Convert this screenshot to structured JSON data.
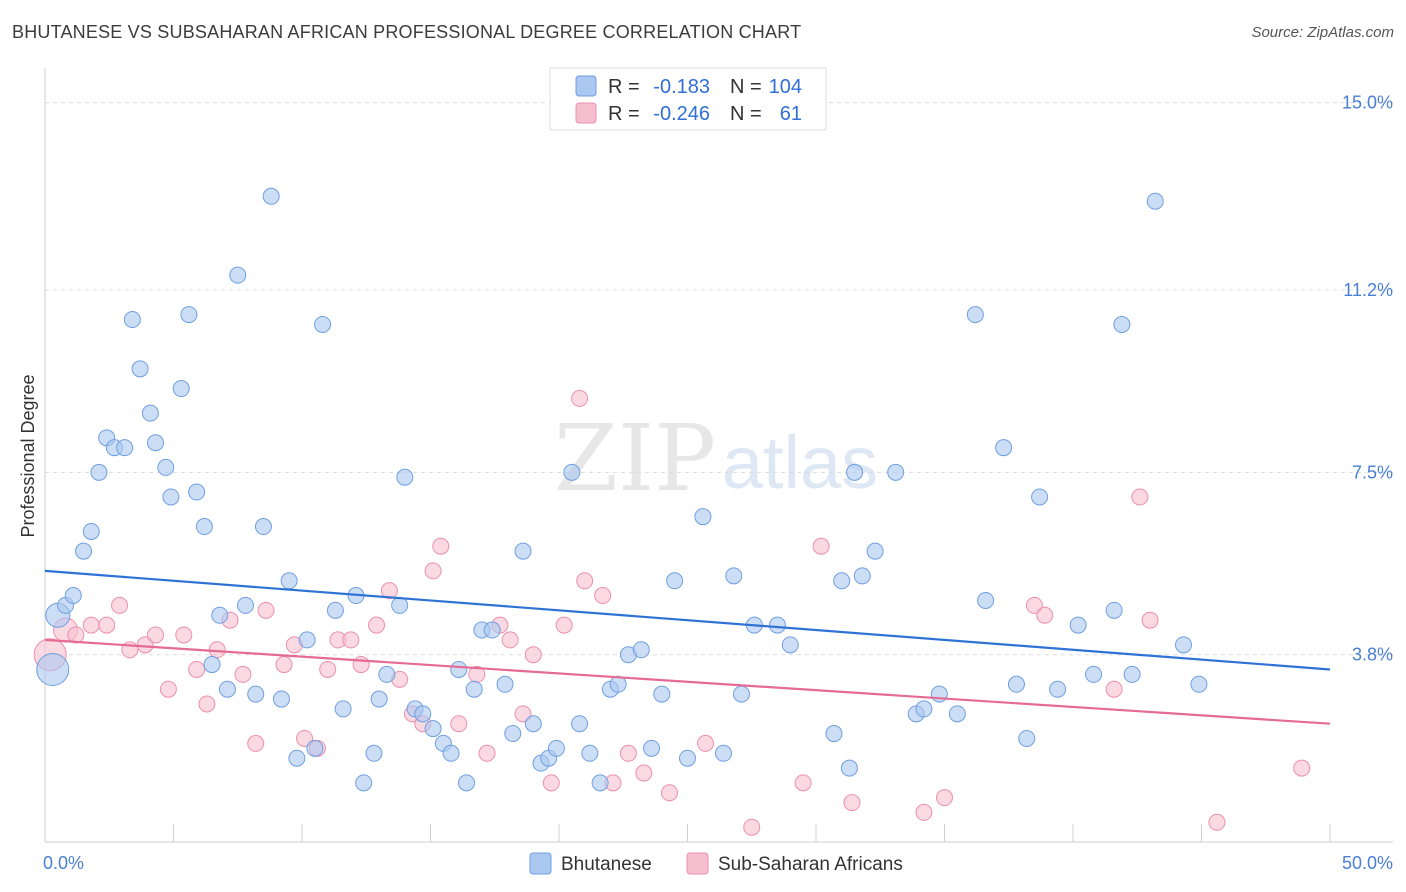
{
  "title": "BHUTANESE VS SUBSAHARAN AFRICAN PROFESSIONAL DEGREE CORRELATION CHART",
  "source": "Source: ZipAtlas.com",
  "watermark": {
    "part1": "ZIP",
    "part2": "atlas"
  },
  "legend_top": {
    "rows": [
      {
        "r_label": "R =",
        "r_value": "-0.183",
        "n_label": "N =",
        "n_value": "104"
      },
      {
        "r_label": "R =",
        "r_value": "-0.246",
        "n_label": "N =",
        "n_value": "61"
      }
    ]
  },
  "legend_bottom": [
    "Bhutanese",
    "Sub-Saharan Africans"
  ],
  "colors": {
    "blue_fill": "#aac8f0",
    "blue_stroke": "#6f9fe0",
    "blue_line": "#2f72d6",
    "pink_fill": "#f6bfd0",
    "pink_stroke": "#ec8fae",
    "pink_line": "#e56a94",
    "grid": "#dcdcdc",
    "axis": "#cfcfcf"
  },
  "chart_data": {
    "type": "scatter",
    "title": "BHUTANESE VS SUBSAHARAN AFRICAN PROFESSIONAL DEGREE CORRELATION CHART",
    "xlabel": "",
    "ylabel": "Professional Degree",
    "xlim": [
      0,
      50
    ],
    "ylim": [
      0,
      15.5
    ],
    "x_tick_labels": [
      "0.0%",
      "50.0%"
    ],
    "y_ticks": [
      3.8,
      7.5,
      11.2,
      15.0
    ],
    "y_tick_labels": [
      "3.8%",
      "7.5%",
      "11.2%",
      "15.0%"
    ],
    "grid": true,
    "series": [
      {
        "name": "Bhutanese",
        "r": -0.183,
        "n": 104,
        "trend": {
          "x": [
            0,
            50
          ],
          "y": [
            5.5,
            3.5
          ]
        },
        "points": [
          [
            0.3,
            3.5
          ],
          [
            0.5,
            4.6
          ],
          [
            0.8,
            4.8
          ],
          [
            1.1,
            5.0
          ],
          [
            1.5,
            5.9
          ],
          [
            1.8,
            6.3
          ],
          [
            2.1,
            7.5
          ],
          [
            2.4,
            8.2
          ],
          [
            2.7,
            8.0
          ],
          [
            3.1,
            8.0
          ],
          [
            3.4,
            10.6
          ],
          [
            3.7,
            9.6
          ],
          [
            4.1,
            8.7
          ],
          [
            4.3,
            8.1
          ],
          [
            4.7,
            7.6
          ],
          [
            4.9,
            7.0
          ],
          [
            5.3,
            9.2
          ],
          [
            5.6,
            10.7
          ],
          [
            5.9,
            7.1
          ],
          [
            6.2,
            6.4
          ],
          [
            6.5,
            3.6
          ],
          [
            6.8,
            4.6
          ],
          [
            7.1,
            3.1
          ],
          [
            7.5,
            11.5
          ],
          [
            7.8,
            4.8
          ],
          [
            8.2,
            3.0
          ],
          [
            8.5,
            6.4
          ],
          [
            8.8,
            13.1
          ],
          [
            9.2,
            2.9
          ],
          [
            9.5,
            5.3
          ],
          [
            9.8,
            1.7
          ],
          [
            10.2,
            4.1
          ],
          [
            10.5,
            1.9
          ],
          [
            10.8,
            10.5
          ],
          [
            11.3,
            4.7
          ],
          [
            11.6,
            2.7
          ],
          [
            12.1,
            5.0
          ],
          [
            12.4,
            1.2
          ],
          [
            12.8,
            1.8
          ],
          [
            13.0,
            2.9
          ],
          [
            13.3,
            3.4
          ],
          [
            13.8,
            4.8
          ],
          [
            14.0,
            7.4
          ],
          [
            14.4,
            2.7
          ],
          [
            14.7,
            2.6
          ],
          [
            15.1,
            2.3
          ],
          [
            15.5,
            2.0
          ],
          [
            15.8,
            1.8
          ],
          [
            16.1,
            3.5
          ],
          [
            16.4,
            1.2
          ],
          [
            16.7,
            3.1
          ],
          [
            17.0,
            4.3
          ],
          [
            17.4,
            4.3
          ],
          [
            17.9,
            3.2
          ],
          [
            18.2,
            2.2
          ],
          [
            18.6,
            5.9
          ],
          [
            19.0,
            2.4
          ],
          [
            19.3,
            1.6
          ],
          [
            19.6,
            1.7
          ],
          [
            19.9,
            1.9
          ],
          [
            20.5,
            7.5
          ],
          [
            20.8,
            2.4
          ],
          [
            21.2,
            1.8
          ],
          [
            21.6,
            1.2
          ],
          [
            22.0,
            3.1
          ],
          [
            22.3,
            3.2
          ],
          [
            22.7,
            3.8
          ],
          [
            23.2,
            3.9
          ],
          [
            23.6,
            1.9
          ],
          [
            24.0,
            3.0
          ],
          [
            24.5,
            5.3
          ],
          [
            25.0,
            1.7
          ],
          [
            25.6,
            6.6
          ],
          [
            26.4,
            1.8
          ],
          [
            26.8,
            5.4
          ],
          [
            27.1,
            3.0
          ],
          [
            27.6,
            4.4
          ],
          [
            28.5,
            4.4
          ],
          [
            29.0,
            4.0
          ],
          [
            30.7,
            2.2
          ],
          [
            31.0,
            5.3
          ],
          [
            31.3,
            1.5
          ],
          [
            31.5,
            7.5
          ],
          [
            31.8,
            5.4
          ],
          [
            32.3,
            5.9
          ],
          [
            33.1,
            7.5
          ],
          [
            33.9,
            2.6
          ],
          [
            34.2,
            2.7
          ],
          [
            34.8,
            3.0
          ],
          [
            35.5,
            2.6
          ],
          [
            36.2,
            10.7
          ],
          [
            36.6,
            4.9
          ],
          [
            37.3,
            8.0
          ],
          [
            37.8,
            3.2
          ],
          [
            38.2,
            2.1
          ],
          [
            38.7,
            7.0
          ],
          [
            39.4,
            3.1
          ],
          [
            40.2,
            4.4
          ],
          [
            40.8,
            3.4
          ],
          [
            41.6,
            4.7
          ],
          [
            41.9,
            10.5
          ],
          [
            42.3,
            3.4
          ],
          [
            43.2,
            13.0
          ],
          [
            44.3,
            4.0
          ],
          [
            44.9,
            3.2
          ]
        ]
      },
      {
        "name": "Sub-Saharan Africans",
        "r": -0.246,
        "n": 61,
        "trend": {
          "x": [
            0,
            50
          ],
          "y": [
            4.1,
            2.4
          ]
        },
        "points": [
          [
            0.2,
            3.8
          ],
          [
            0.8,
            4.3
          ],
          [
            1.2,
            4.2
          ],
          [
            1.8,
            4.4
          ],
          [
            2.4,
            4.4
          ],
          [
            2.9,
            4.8
          ],
          [
            3.3,
            3.9
          ],
          [
            3.9,
            4.0
          ],
          [
            4.3,
            4.2
          ],
          [
            4.8,
            3.1
          ],
          [
            5.4,
            4.2
          ],
          [
            5.9,
            3.5
          ],
          [
            6.3,
            2.8
          ],
          [
            6.7,
            3.9
          ],
          [
            7.2,
            4.5
          ],
          [
            7.7,
            3.4
          ],
          [
            8.2,
            2.0
          ],
          [
            8.6,
            4.7
          ],
          [
            9.3,
            3.6
          ],
          [
            9.7,
            4.0
          ],
          [
            10.1,
            2.1
          ],
          [
            10.6,
            1.9
          ],
          [
            11.0,
            3.5
          ],
          [
            11.4,
            4.1
          ],
          [
            11.9,
            4.1
          ],
          [
            12.3,
            3.6
          ],
          [
            12.9,
            4.4
          ],
          [
            13.4,
            5.1
          ],
          [
            13.8,
            3.3
          ],
          [
            14.3,
            2.6
          ],
          [
            14.7,
            2.4
          ],
          [
            15.1,
            5.5
          ],
          [
            15.4,
            6.0
          ],
          [
            16.1,
            2.4
          ],
          [
            16.8,
            3.4
          ],
          [
            17.2,
            1.8
          ],
          [
            17.7,
            4.4
          ],
          [
            18.1,
            4.1
          ],
          [
            18.6,
            2.6
          ],
          [
            19.0,
            3.8
          ],
          [
            19.7,
            1.2
          ],
          [
            20.2,
            4.4
          ],
          [
            20.8,
            9.0
          ],
          [
            21.0,
            5.3
          ],
          [
            21.7,
            5.0
          ],
          [
            22.1,
            1.2
          ],
          [
            22.7,
            1.8
          ],
          [
            23.3,
            1.4
          ],
          [
            24.3,
            1.0
          ],
          [
            25.7,
            2.0
          ],
          [
            27.5,
            0.3
          ],
          [
            29.5,
            1.2
          ],
          [
            30.2,
            6.0
          ],
          [
            31.4,
            0.8
          ],
          [
            34.2,
            0.6
          ],
          [
            35.0,
            0.9
          ],
          [
            38.5,
            4.8
          ],
          [
            38.9,
            4.6
          ],
          [
            41.6,
            3.1
          ],
          [
            42.6,
            7.0
          ],
          [
            43.0,
            4.5
          ],
          [
            45.6,
            0.4
          ],
          [
            48.9,
            1.5
          ]
        ]
      }
    ]
  }
}
